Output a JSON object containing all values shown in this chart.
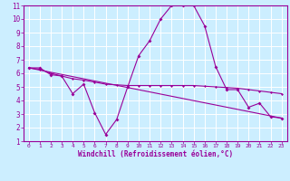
{
  "xlabel": "Windchill (Refroidissement éolien,°C)",
  "background_color": "#cceeff",
  "line_color": "#990099",
  "grid_color": "#ffffff",
  "xlim": [
    -0.5,
    23.5
  ],
  "ylim": [
    1,
    11
  ],
  "xticks": [
    0,
    1,
    2,
    3,
    4,
    5,
    6,
    7,
    8,
    9,
    10,
    11,
    12,
    13,
    14,
    15,
    16,
    17,
    18,
    19,
    20,
    21,
    22,
    23
  ],
  "yticks": [
    1,
    2,
    3,
    4,
    5,
    6,
    7,
    8,
    9,
    10,
    11
  ],
  "line1_x": [
    0,
    1,
    2,
    3,
    4,
    5,
    6,
    7,
    8,
    9,
    10,
    11,
    12,
    13,
    14,
    15,
    16,
    17,
    18,
    19,
    20,
    21,
    22,
    23
  ],
  "line1_y": [
    6.4,
    6.4,
    5.9,
    5.8,
    4.5,
    5.2,
    3.1,
    1.5,
    2.6,
    5.0,
    7.3,
    8.4,
    10.0,
    11.0,
    11.0,
    11.0,
    9.5,
    6.5,
    4.8,
    4.8,
    3.5,
    3.8,
    2.8,
    2.7
  ],
  "line2_x": [
    0,
    1,
    2,
    3,
    4,
    5,
    6,
    7,
    8,
    9,
    10,
    11,
    12,
    13,
    14,
    15,
    16,
    17,
    18,
    19,
    20,
    21,
    22,
    23
  ],
  "line2_y": [
    6.4,
    6.3,
    6.0,
    5.8,
    5.6,
    5.5,
    5.35,
    5.2,
    5.15,
    5.1,
    5.1,
    5.1,
    5.1,
    5.1,
    5.1,
    5.1,
    5.05,
    5.0,
    4.95,
    4.9,
    4.8,
    4.7,
    4.6,
    4.5
  ],
  "line3_x": [
    0,
    23
  ],
  "line3_y": [
    6.4,
    2.7
  ]
}
